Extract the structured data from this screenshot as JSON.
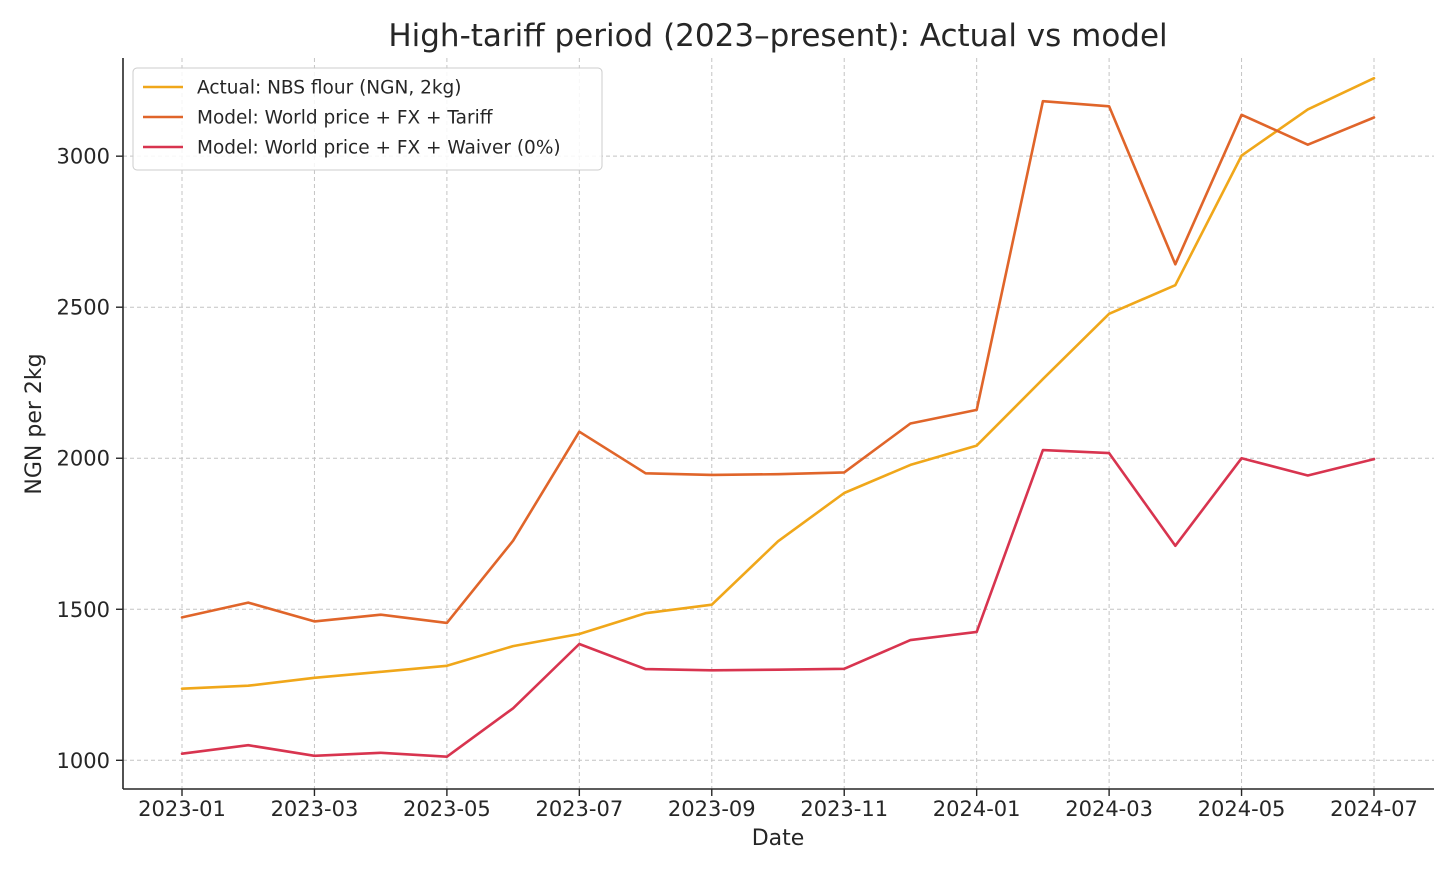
{
  "chart_data": {
    "type": "line",
    "title": "High-tariff period (2023–present): Actual vs model",
    "xlabel": "Date",
    "ylabel": "NGN per 2kg",
    "ylim": [
      905,
      3325
    ],
    "yticks": [
      1000,
      1500,
      2000,
      2500,
      3000
    ],
    "x": [
      "2023-01",
      "2023-02",
      "2023-03",
      "2023-04",
      "2023-05",
      "2023-06",
      "2023-07",
      "2023-08",
      "2023-09",
      "2023-10",
      "2023-11",
      "2023-12",
      "2024-01",
      "2024-02",
      "2024-03",
      "2024-04",
      "2024-05",
      "2024-06",
      "2024-07"
    ],
    "xticks": [
      "2023-01",
      "2023-03",
      "2023-05",
      "2023-07",
      "2023-09",
      "2023-11",
      "2024-01",
      "2024-03",
      "2024-05",
      "2024-07"
    ],
    "grid": true,
    "legend_position": "top-left",
    "series": [
      {
        "name": "Actual: NBS flour (NGN, 2kg)",
        "color": "#F0A71A",
        "values": [
          1237,
          1247,
          1273,
          1293,
          1313,
          1378,
          1418,
          1487,
          1515,
          1725,
          1885,
          1978,
          2042,
          2262,
          2478,
          2573,
          3002,
          3155,
          3258
        ]
      },
      {
        "name": "Model: World price + FX + Tariff",
        "color": "#E0652A",
        "values": [
          1473,
          1522,
          1460,
          1482,
          1455,
          1727,
          2088,
          1950,
          1945,
          1947,
          1953,
          2115,
          2160,
          3182,
          3165,
          2642,
          3137,
          3038,
          3128
        ]
      },
      {
        "name": "Model: World price + FX + Waiver (0%)",
        "color": "#D8344F",
        "values": [
          1022,
          1050,
          1015,
          1025,
          1012,
          1172,
          1385,
          1302,
          1298,
          1300,
          1303,
          1398,
          1425,
          2027,
          2017,
          1710,
          2000,
          1943,
          1997
        ]
      }
    ]
  }
}
